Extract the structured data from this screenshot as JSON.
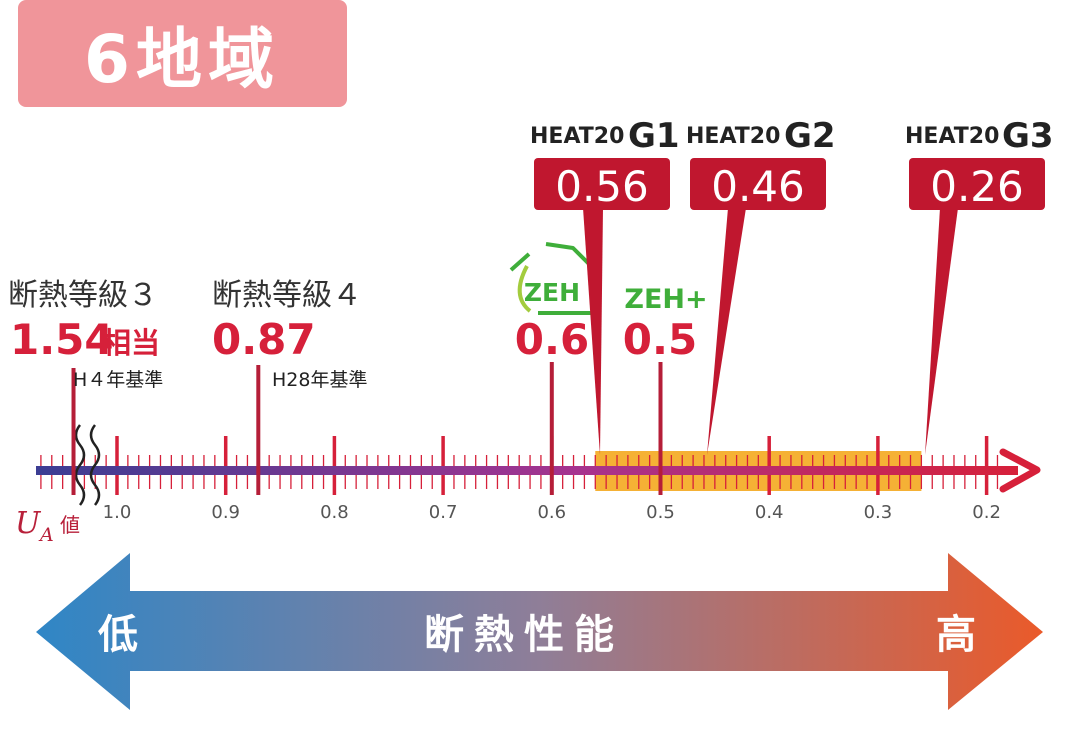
{
  "region_badge": {
    "text": "6地域",
    "color": "#f0959a"
  },
  "scale": {
    "axis_label_main": "U",
    "axis_label_sub": "A",
    "axis_label_suffix": "値",
    "ticks": [
      {
        "value": 1.0,
        "label": "1.0"
      },
      {
        "value": 0.9,
        "label": "0.9"
      },
      {
        "value": 0.8,
        "label": "0.8"
      },
      {
        "value": 0.7,
        "label": "0.7"
      },
      {
        "value": 0.6,
        "label": "0.6"
      },
      {
        "value": 0.5,
        "label": "0.5"
      },
      {
        "value": 0.4,
        "label": "0.4"
      },
      {
        "value": 0.3,
        "label": "0.3"
      },
      {
        "value": 0.2,
        "label": "0.2"
      }
    ],
    "highlight_range": [
      0.56,
      0.26
    ],
    "highlight_color": "#f5b135",
    "accent_color": "#d6203a"
  },
  "grades": [
    {
      "title": "断熱等級３",
      "value": "1.54",
      "value_suffix": "相当",
      "basis": "H４年基準",
      "ua": 1.04
    },
    {
      "title": "断熱等級４",
      "value": "0.87",
      "value_suffix": "",
      "basis": "H28年基準",
      "ua": 0.87
    }
  ],
  "zeh": [
    {
      "label": "ZEH",
      "value": "0.6",
      "ua": 0.6,
      "color": "#3fae3a"
    },
    {
      "label": "ZEH+",
      "value": "0.5",
      "ua": 0.5,
      "color": "#3fae3a"
    }
  ],
  "heat20": [
    {
      "prefix": "HEAT20",
      "grade": "G1",
      "value": "0.56",
      "ua": 0.56
    },
    {
      "prefix": "HEAT20",
      "grade": "G2",
      "value": "0.46",
      "ua": 0.46
    },
    {
      "prefix": "HEAT20",
      "grade": "G3",
      "value": "0.26",
      "ua": 0.26
    }
  ],
  "performance_arrow": {
    "left_label": "低",
    "center_label": "断熱性能",
    "right_label": "高",
    "left_color": "#2f86c6",
    "right_color": "#ea5a2a"
  }
}
